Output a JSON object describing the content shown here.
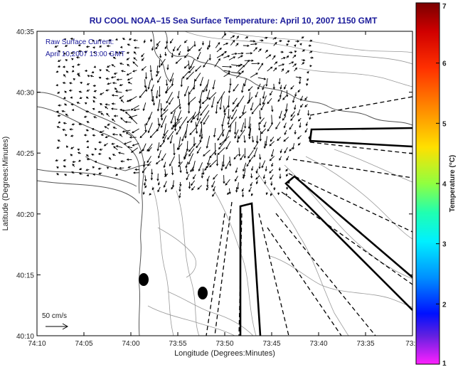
{
  "title": "RU COOL  NOAA–15  Sea Surface Temperature:  April 10, 2007 1150 GMT",
  "xlabel": "Longitude (Degrees:Minutes)",
  "ylabel": "Latitude (Degrees:Minutes)",
  "x_ticks": [
    "74:10",
    "74:05",
    "74:00",
    "73:55",
    "73:50",
    "73:45",
    "73:40",
    "73:35",
    "73:3"
  ],
  "y_ticks": [
    "40:35",
    "40:30",
    "40:25",
    "40:20",
    "40:15",
    "40:10"
  ],
  "annotation": {
    "line1": "Raw Surface Current:",
    "line2": "April 10,2007 13:00 GMT"
  },
  "scale_label": "50 cm/s",
  "colorbar": {
    "label": "Temperature (°C)",
    "ticks": [
      "7",
      "6",
      "5",
      "4",
      "3",
      "2",
      "1"
    ],
    "range": [
      1,
      7
    ],
    "colors": [
      "#8b0000",
      "#ff0000",
      "#ff8000",
      "#ffff00",
      "#00ff80",
      "#00ffff",
      "#0080ff",
      "#0000ff",
      "#8000ff",
      "#ff00ff"
    ]
  }
}
